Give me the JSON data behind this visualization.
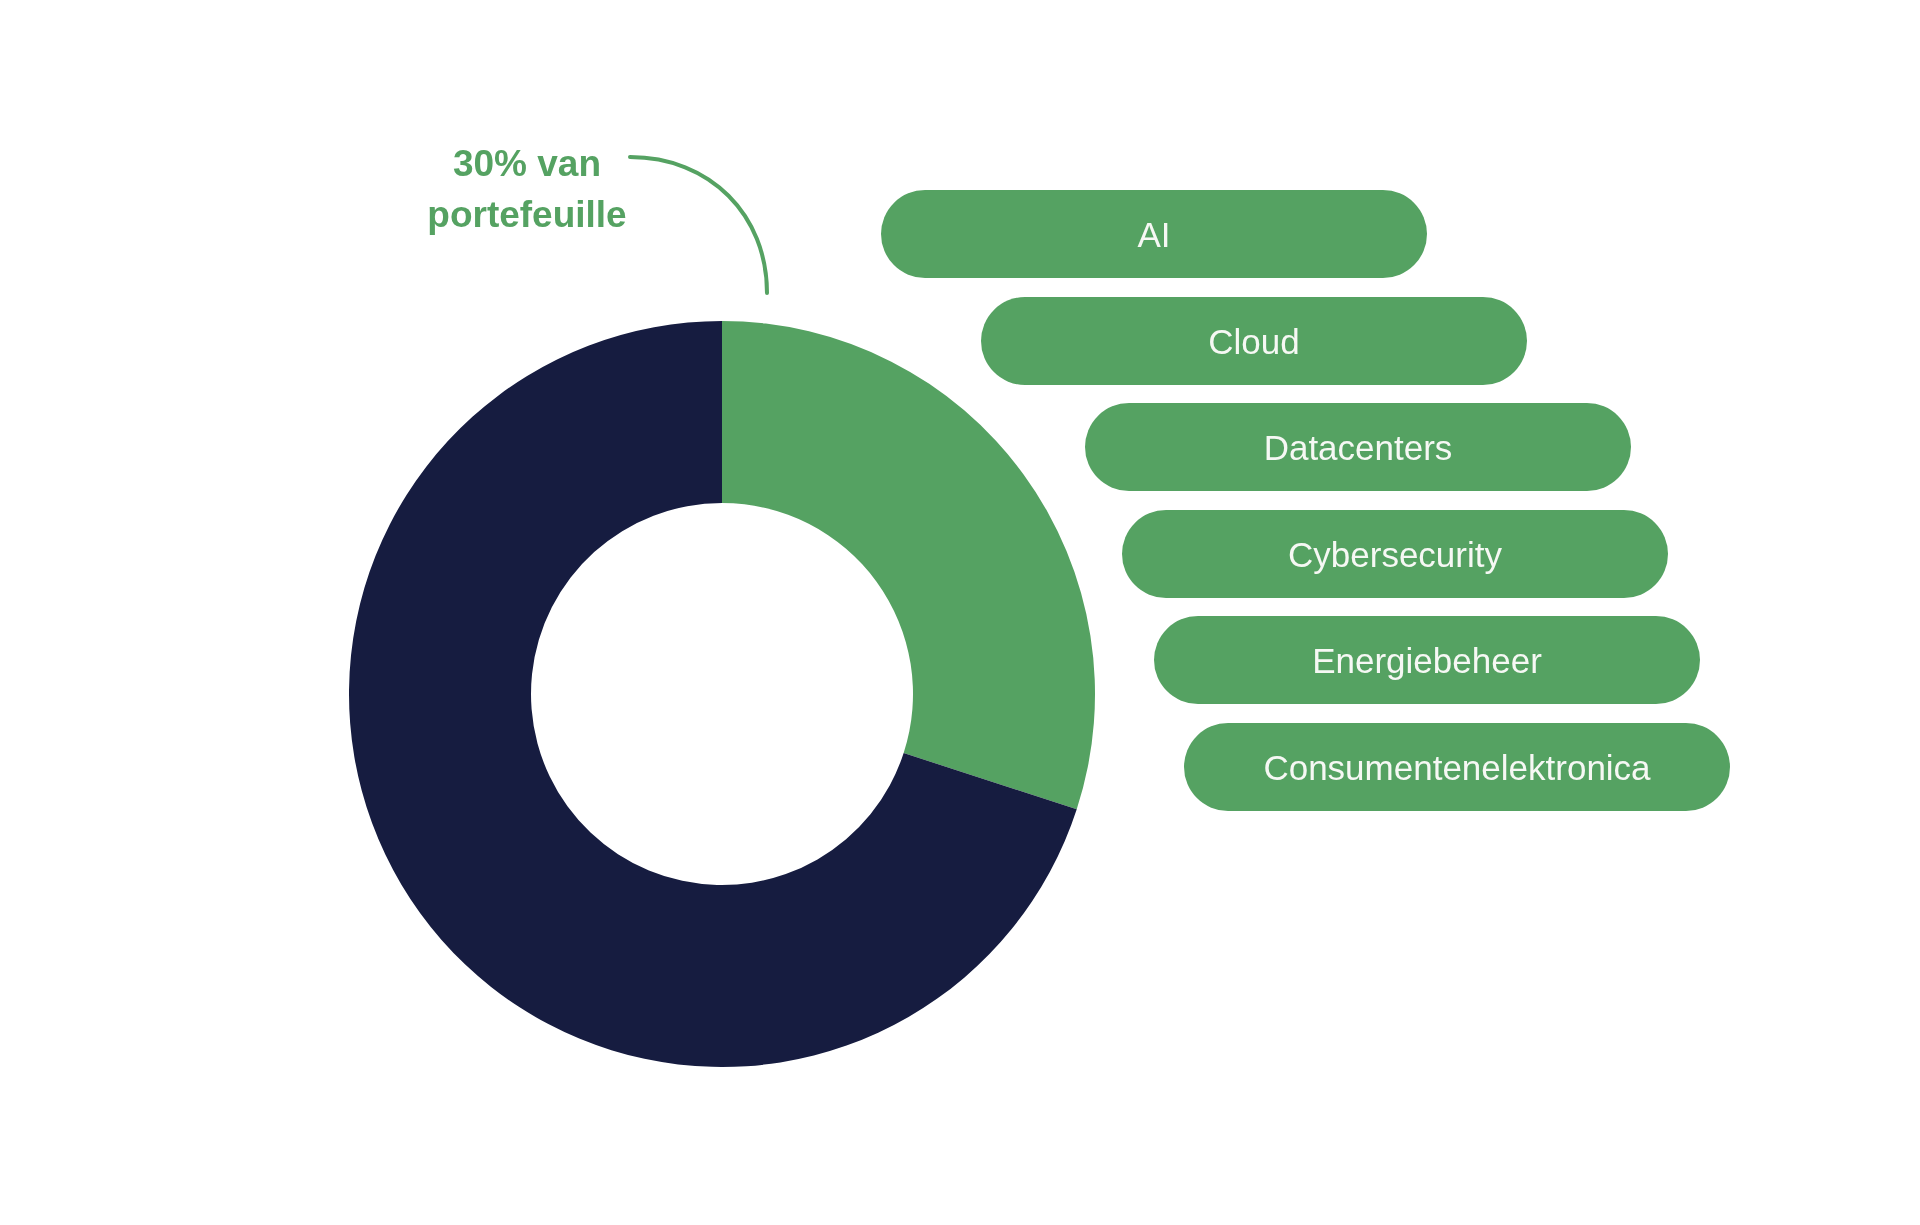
{
  "chart_data": {
    "type": "donut",
    "categories": [
      null,
      null
    ],
    "values": [
      30,
      70
    ],
    "colors": [
      "#55a262",
      "#161c40"
    ],
    "value_labels": [
      "30% van portefeuille",
      null
    ],
    "annotations": [
      "AI",
      "Cloud",
      "Datacenters",
      "Cybersecurity",
      "Energiebeheer",
      "Consumentenelektronica"
    ]
  }
}
